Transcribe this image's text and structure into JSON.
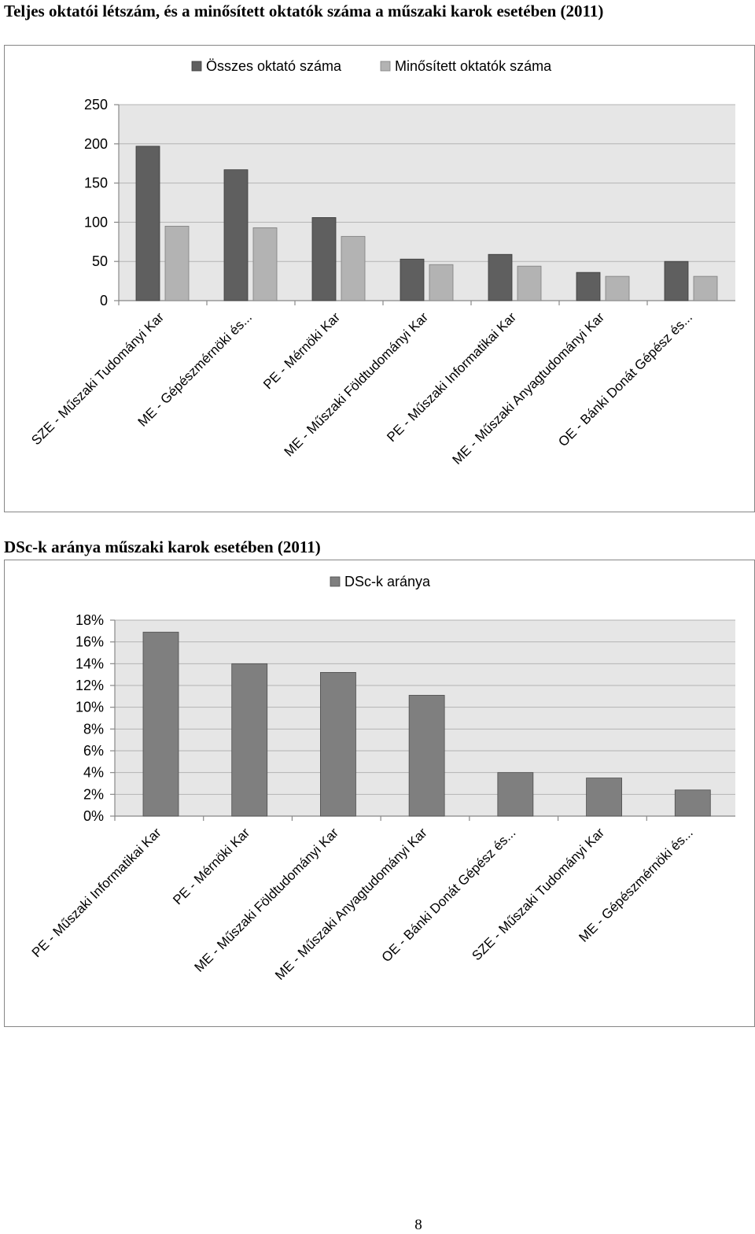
{
  "headings": {
    "chart1": "Teljes oktatói létszám, és a minősített oktatók száma a műszaki karok esetében (2011)",
    "chart2": "DSc-k aránya műszaki karok esetében (2011)"
  },
  "page_number": "8",
  "colors": {
    "series_total": "#5f5f5f",
    "series_qualified": "#b3b3b3",
    "series_dsc": "#7f7f7f",
    "plot_background": "#e6e6e6"
  },
  "chart_data": [
    {
      "type": "bar",
      "title": "",
      "categories": [
        "SZE - Műszaki Tudományi Kar",
        "ME - Gépészmérnöki és...",
        "PE - Mérnöki Kar",
        "ME - Műszaki Földtudományi Kar",
        "PE - Műszaki Informatikai Kar",
        "ME - Műszaki Anyagtudományi Kar",
        "OE - Bánki Donát Gépész és..."
      ],
      "series": [
        {
          "name": "Összes oktató száma",
          "values": [
            197,
            167,
            106,
            53,
            59,
            36,
            50
          ]
        },
        {
          "name": "Minősített oktatók száma",
          "values": [
            95,
            93,
            82,
            46,
            44,
            31,
            31
          ]
        }
      ],
      "ylim": [
        0,
        250
      ],
      "yticks": [
        "0",
        "50",
        "100",
        "150",
        "200",
        "250"
      ],
      "xlabel": "",
      "ylabel": "",
      "grid": true,
      "legend": "top"
    },
    {
      "type": "bar",
      "title": "",
      "categories": [
        "PE - Műszaki Informatikai Kar",
        "PE - Mérnöki Kar",
        "ME - Műszaki Földtudományi Kar",
        "ME - Műszaki Anyagtudományi Kar",
        "OE - Bánki Donát Gépész és...",
        "SZE - Műszaki Tudományi Kar",
        "ME - Gépészmérnöki és..."
      ],
      "series": [
        {
          "name": "DSc-k aránya",
          "values": [
            16.9,
            14.0,
            13.2,
            11.1,
            4.0,
            3.5,
            2.4
          ]
        }
      ],
      "ylim": [
        0,
        18
      ],
      "yticks": [
        "0%",
        "2%",
        "4%",
        "6%",
        "8%",
        "10%",
        "12%",
        "14%",
        "16%",
        "18%"
      ],
      "xlabel": "",
      "ylabel": "",
      "grid": true,
      "legend": "top"
    }
  ]
}
